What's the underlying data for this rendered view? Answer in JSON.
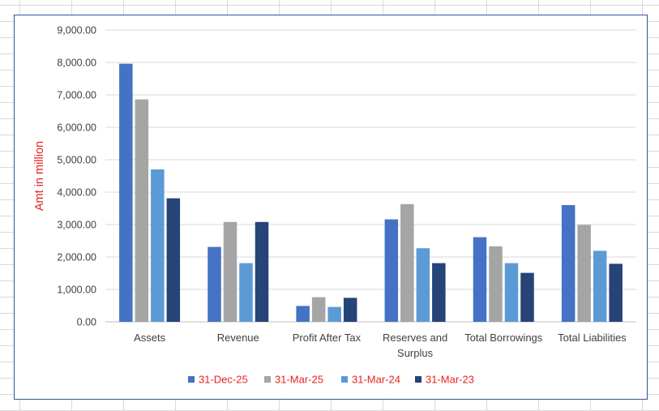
{
  "chart_data": {
    "type": "bar",
    "ylabel": "Amt in million",
    "ylim": [
      0,
      9000
    ],
    "yticks": [
      "0.00",
      "1,000.00",
      "2,000.00",
      "3,000.00",
      "4,000.00",
      "5,000.00",
      "6,000.00",
      "7,000.00",
      "8,000.00",
      "9,000.00"
    ],
    "categories": [
      [
        "Assets"
      ],
      [
        "Revenue"
      ],
      [
        "Profit After Tax"
      ],
      [
        "Reserves and",
        "Surplus"
      ],
      [
        "Total Borrowings"
      ],
      [
        "Total Liabilities"
      ]
    ],
    "series": [
      {
        "name": "31-Dec-25",
        "color": "#4472c4",
        "values": [
          7960,
          2310,
          490,
          3160,
          2610,
          3600
        ]
      },
      {
        "name": "31-Mar-25",
        "color": "#a5a5a5",
        "values": [
          6860,
          3080,
          760,
          3630,
          2330,
          2990
        ]
      },
      {
        "name": "31-Mar-24",
        "color": "#5b9bd5",
        "values": [
          4700,
          1810,
          460,
          2270,
          1810,
          2190
        ]
      },
      {
        "name": "31-Mar-23",
        "color": "#264478",
        "values": [
          3810,
          3080,
          740,
          1810,
          1510,
          1790
        ]
      }
    ],
    "grid": true,
    "legend": "bottom",
    "legend_text_color": "#e8221e"
  }
}
